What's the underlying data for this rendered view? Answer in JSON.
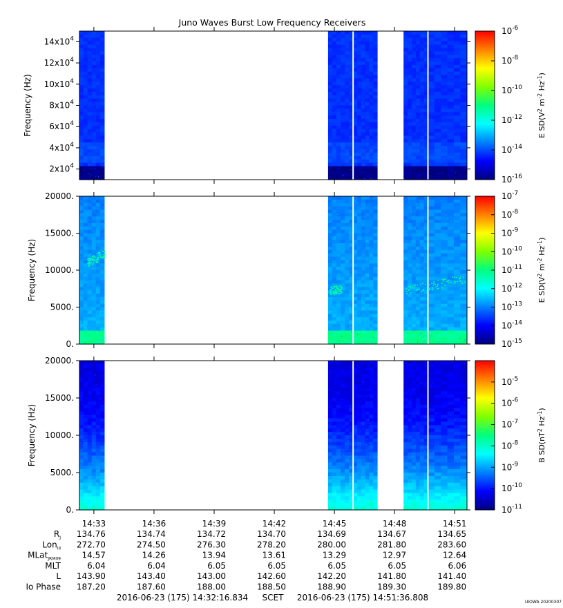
{
  "title": "Juno Waves Burst Low Frequency Receivers",
  "stamp": "UIOWA 20200307",
  "colors": {
    "background": "#ffffff",
    "spec_bg_e": "#2aa6e6",
    "spec_bg_b": "#1a2fd8",
    "colorbar": [
      "#00007f",
      "#0000ff",
      "#0080ff",
      "#00ffff",
      "#00ff80",
      "#80ff00",
      "#ffff00",
      "#ff8000",
      "#ff0000"
    ]
  },
  "chart_data": [
    {
      "type": "heatmap",
      "panel": "E field high band",
      "ylabel": "Frequency (Hz)",
      "yscale": "linear",
      "ylim": [
        10000,
        150000
      ],
      "yticks": [
        20000,
        40000,
        60000,
        80000,
        100000,
        120000,
        140000
      ],
      "ytick_labels": [
        {
          "mant": "2x10",
          "exp": "4"
        },
        {
          "mant": "4x10",
          "exp": "4"
        },
        {
          "mant": "6x10",
          "exp": "4"
        },
        {
          "mant": "8x10",
          "exp": "4"
        },
        {
          "mant": "10x10",
          "exp": "4"
        },
        {
          "mant": "12x10",
          "exp": "4"
        },
        {
          "mant": "14x10",
          "exp": "4"
        }
      ],
      "colorbar": {
        "label_text": "E SD(V",
        "scale": "log",
        "range": [
          1e-16,
          1e-06
        ],
        "ticks": [
          {
            "mant": "10",
            "exp": "-6"
          },
          {
            "mant": "10",
            "exp": "-8"
          },
          {
            "mant": "10",
            "exp": "-10"
          },
          {
            "mant": "10",
            "exp": "-12"
          },
          {
            "mant": "10",
            "exp": "-14"
          },
          {
            "mant": "10",
            "exp": "-16"
          }
        ]
      },
      "data_intervals": [
        [
          "14:32:16",
          "14:33:31"
        ],
        [
          "14:44:41",
          "14:45:56"
        ],
        [
          "14:45:56",
          "14:47:08"
        ],
        [
          "14:48:27",
          "14:49:40"
        ],
        [
          "14:49:40",
          "14:51:36"
        ]
      ],
      "typical_log_sd": -14.3
    },
    {
      "type": "heatmap",
      "panel": "E field low band",
      "ylabel": "Frequency (Hz)",
      "yscale": "linear",
      "ylim": [
        0,
        20000
      ],
      "yticks": [
        0,
        5000,
        10000,
        15000,
        20000
      ],
      "ytick_labels": [
        "0.",
        "5000.",
        "10000.",
        "15000.",
        "20000."
      ],
      "colorbar": {
        "label_text": "E SD(V",
        "scale": "log",
        "range": [
          1e-15,
          1e-07
        ],
        "ticks": [
          {
            "mant": "10",
            "exp": "-7"
          },
          {
            "mant": "10",
            "exp": "-8"
          },
          {
            "mant": "10",
            "exp": "-9"
          },
          {
            "mant": "10",
            "exp": "-10"
          },
          {
            "mant": "10",
            "exp": "-11"
          },
          {
            "mant": "10",
            "exp": "-12"
          },
          {
            "mant": "10",
            "exp": "-13"
          },
          {
            "mant": "10",
            "exp": "-14"
          },
          {
            "mant": "10",
            "exp": "-15"
          }
        ]
      },
      "data_intervals": [
        [
          "14:32:16",
          "14:33:31"
        ],
        [
          "14:44:41",
          "14:45:56"
        ],
        [
          "14:45:56",
          "14:47:08"
        ],
        [
          "14:48:27",
          "14:49:40"
        ],
        [
          "14:49:40",
          "14:51:36"
        ]
      ],
      "emission_band_hz": [
        7000,
        12500
      ],
      "typical_log_sd": -13.0
    },
    {
      "type": "heatmap",
      "panel": "B field",
      "ylabel": "Frequency (Hz)",
      "yscale": "linear",
      "ylim": [
        0,
        20000
      ],
      "yticks": [
        0,
        5000,
        10000,
        15000,
        20000
      ],
      "ytick_labels": [
        "0.",
        "5000.",
        "10000.",
        "15000.",
        "20000."
      ],
      "colorbar": {
        "label_text": "B SD(nT",
        "scale": "log",
        "range": [
          1e-11,
          0.0001
        ],
        "ticks": [
          {
            "mant": "10",
            "exp": "-5"
          },
          {
            "mant": "10",
            "exp": "-6"
          },
          {
            "mant": "10",
            "exp": "-7"
          },
          {
            "mant": "10",
            "exp": "-8"
          },
          {
            "mant": "10",
            "exp": "-9"
          },
          {
            "mant": "10",
            "exp": "-10"
          },
          {
            "mant": "10",
            "exp": "-11"
          }
        ]
      },
      "data_intervals": [
        [
          "14:32:16",
          "14:33:31"
        ],
        [
          "14:44:41",
          "14:45:56"
        ],
        [
          "14:45:56",
          "14:47:08"
        ],
        [
          "14:48:27",
          "14:49:40"
        ],
        [
          "14:49:40",
          "14:51:36"
        ]
      ],
      "typical_log_sd": -10.3
    }
  ],
  "time_axis": {
    "start": "14:32:16.834",
    "end": "14:51:36.808",
    "tick_labels": [
      "14:33",
      "14:36",
      "14:39",
      "14:42",
      "14:45",
      "14:48",
      "14:51"
    ]
  },
  "ephemeris": [
    {
      "label": "R",
      "sub": "J",
      "values": [
        "134.76",
        "134.74",
        "134.72",
        "134.70",
        "134.69",
        "134.67",
        "134.65"
      ]
    },
    {
      "label": "Lon",
      "sub": "III",
      "values": [
        "272.70",
        "274.50",
        "276.30",
        "278.20",
        "280.00",
        "281.80",
        "283.60"
      ]
    },
    {
      "label": "MLat",
      "sub": "JRM09",
      "values": [
        "14.57",
        "14.26",
        "13.94",
        "13.61",
        "13.29",
        "12.97",
        "12.64"
      ]
    },
    {
      "label": "MLT",
      "sub": "",
      "values": [
        "6.04",
        "6.04",
        "6.05",
        "6.05",
        "6.05",
        "6.05",
        "6.06"
      ]
    },
    {
      "label": "L",
      "sub": "",
      "values": [
        "143.90",
        "143.40",
        "143.00",
        "142.60",
        "142.20",
        "141.80",
        "141.40"
      ]
    },
    {
      "label": "Io Phase",
      "sub": "",
      "values": [
        "187.20",
        "187.60",
        "188.00",
        "188.50",
        "188.90",
        "189.30",
        "189.80"
      ]
    }
  ],
  "footer": {
    "start": "2016-06-23 (175) 14:32:16.834",
    "mid": "SCET",
    "end": "2016-06-23 (175) 14:51:36.808"
  }
}
